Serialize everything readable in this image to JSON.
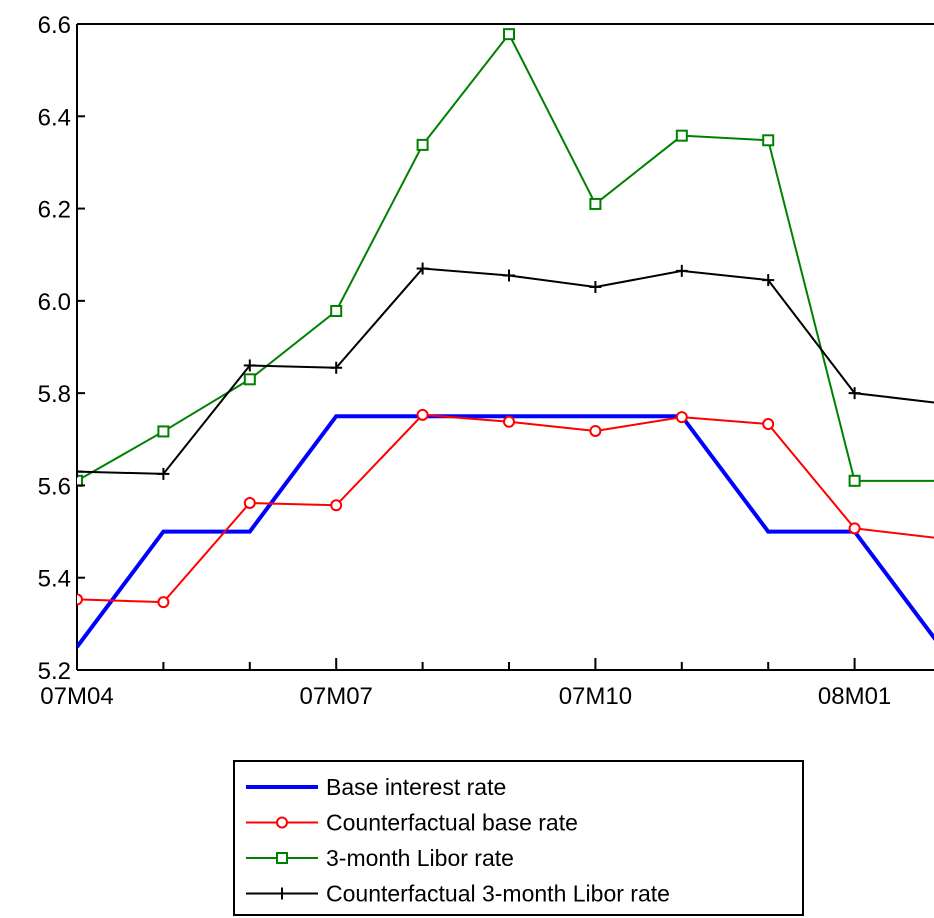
{
  "chart_data": {
    "type": "line",
    "title": "",
    "xlabel": "",
    "ylabel": "",
    "x": [
      "07M04",
      "07M05",
      "07M06",
      "07M07",
      "07M08",
      "07M09",
      "07M10",
      "07M11",
      "07M12",
      "08M01",
      "08M02"
    ],
    "x_tick_labels": [
      "07M04",
      "07M07",
      "07M10",
      "08M01"
    ],
    "ylim": [
      5.2,
      6.6
    ],
    "y_ticks": [
      "5.2",
      "5.4",
      "5.6",
      "5.8",
      "6.0",
      "6.2",
      "6.4",
      "6.6"
    ],
    "legend_position": "bottom-center",
    "grid": false,
    "series": [
      {
        "name": "Base interest rate",
        "color": "#0000ff",
        "marker": "none",
        "values": [
          5.25,
          5.5,
          5.5,
          5.75,
          5.75,
          5.75,
          5.75,
          5.75,
          5.5,
          5.5,
          5.25
        ]
      },
      {
        "name": "Counterfactual base rate",
        "color": "#ff0000",
        "marker": "circle",
        "values": [
          5.353,
          5.347,
          5.562,
          5.557,
          5.753,
          5.738,
          5.718,
          5.748,
          5.733,
          5.507,
          5.485
        ]
      },
      {
        "name": "3-month Libor rate",
        "color": "#008000",
        "marker": "square",
        "values": [
          5.61,
          5.717,
          5.83,
          5.978,
          6.338,
          6.578,
          6.21,
          6.358,
          6.348,
          5.61,
          5.61
        ]
      },
      {
        "name": "Counterfactual 3-month Libor rate",
        "color": "#000000",
        "marker": "plus",
        "values": [
          5.63,
          5.625,
          5.86,
          5.855,
          6.07,
          6.055,
          6.03,
          6.065,
          6.045,
          5.8,
          5.778
        ]
      }
    ]
  }
}
